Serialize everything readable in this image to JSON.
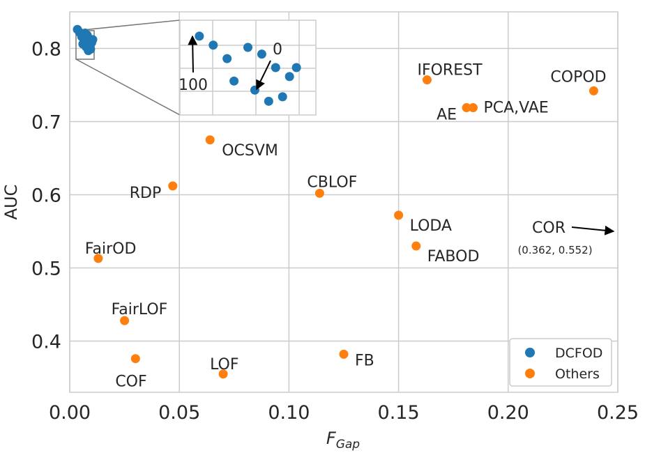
{
  "chart_data": {
    "type": "scatter",
    "title": "",
    "xlabel": "F",
    "xlabel_sub": "Gap",
    "ylabel": "AUC",
    "xlim": [
      0.0,
      0.25
    ],
    "ylim": [
      0.33,
      0.85
    ],
    "x_ticks": [
      0.0,
      0.05,
      0.1,
      0.15,
      0.2,
      0.25
    ],
    "x_tick_labels": [
      "0.00",
      "0.05",
      "0.10",
      "0.15",
      "0.20",
      "0.25"
    ],
    "y_ticks": [
      0.4,
      0.5,
      0.6,
      0.7,
      0.8
    ],
    "y_tick_labels": [
      "0.4",
      "0.5",
      "0.6",
      "0.7",
      "0.8"
    ],
    "grid": true,
    "legend": {
      "position": "bottom-right",
      "entries": [
        "DCFOD",
        "Others"
      ]
    },
    "colors": {
      "DCFOD": "#1f77b4",
      "Others": "#ff7f0e",
      "grid": "#cccccc",
      "text": "#262626"
    },
    "series": [
      {
        "name": "DCFOD",
        "points": [
          {
            "x": 0.0035,
            "y": 0.826
          },
          {
            "x": 0.0045,
            "y": 0.822
          },
          {
            "x": 0.0055,
            "y": 0.816
          },
          {
            "x": 0.007,
            "y": 0.821
          },
          {
            "x": 0.008,
            "y": 0.818
          },
          {
            "x": 0.009,
            "y": 0.812
          },
          {
            "x": 0.01,
            "y": 0.808
          },
          {
            "x": 0.006,
            "y": 0.806
          },
          {
            "x": 0.0075,
            "y": 0.802
          },
          {
            "x": 0.0095,
            "y": 0.799
          },
          {
            "x": 0.0105,
            "y": 0.812
          },
          {
            "x": 0.0085,
            "y": 0.797
          }
        ]
      },
      {
        "name": "Others",
        "points": [
          {
            "label": "IFOREST",
            "x": 0.163,
            "y": 0.757
          },
          {
            "label": "COPOD",
            "x": 0.239,
            "y": 0.742
          },
          {
            "label": "AE",
            "x": 0.181,
            "y": 0.719
          },
          {
            "label": "PCA,VAE",
            "x": 0.184,
            "y": 0.719
          },
          {
            "label": "OCSVM",
            "x": 0.064,
            "y": 0.675
          },
          {
            "label": "RDP",
            "x": 0.047,
            "y": 0.612
          },
          {
            "label": "CBLOF",
            "x": 0.114,
            "y": 0.602
          },
          {
            "label": "LODA",
            "x": 0.15,
            "y": 0.572
          },
          {
            "label": "FABOD",
            "x": 0.158,
            "y": 0.53
          },
          {
            "label": "FairOD",
            "x": 0.013,
            "y": 0.513
          },
          {
            "label": "FairLOF",
            "x": 0.025,
            "y": 0.428
          },
          {
            "label": "COF",
            "x": 0.03,
            "y": 0.376
          },
          {
            "label": "LOF",
            "x": 0.07,
            "y": 0.355
          },
          {
            "label": "FB",
            "x": 0.125,
            "y": 0.382
          }
        ]
      }
    ],
    "offscreen_annotation": {
      "label": "COR",
      "coords_text": "(0.362, 0.552)",
      "x": 0.362,
      "y": 0.552
    },
    "inset": {
      "description": "zoom of DCFOD cluster",
      "annotations": [
        {
          "text": "100"
        },
        {
          "text": "0"
        }
      ]
    }
  }
}
